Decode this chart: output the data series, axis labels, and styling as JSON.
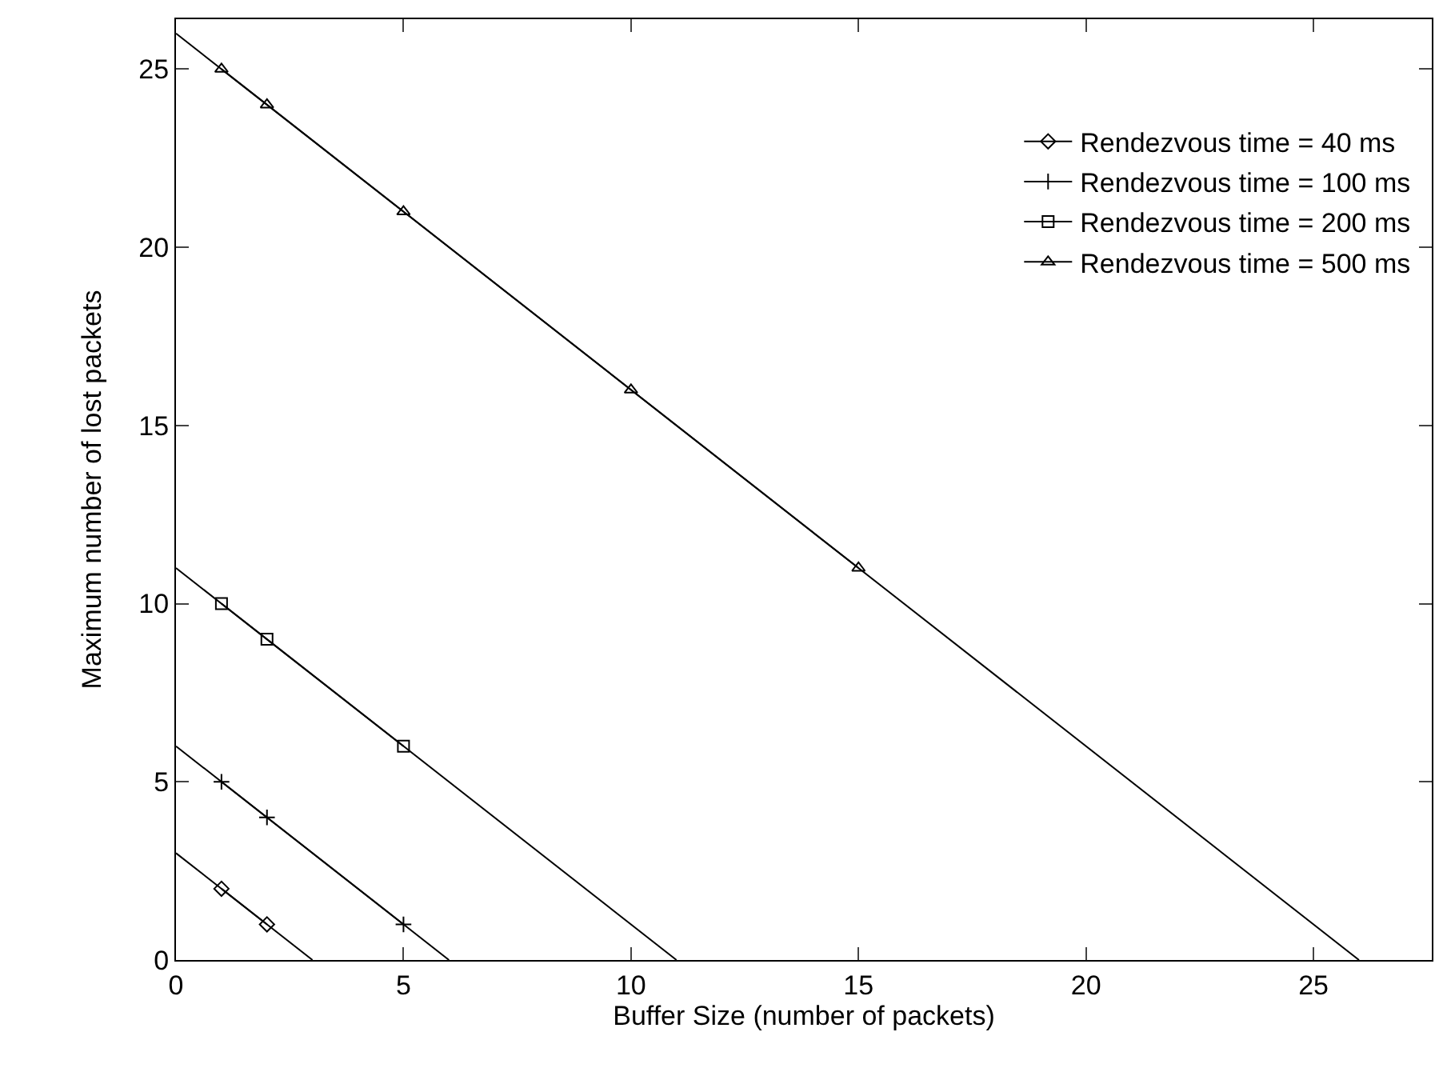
{
  "chart_data": {
    "type": "line",
    "xlabel": "Buffer Size (number of packets)",
    "ylabel": "Maximum number of lost packets",
    "xlim": [
      0,
      27.6
    ],
    "ylim": [
      0,
      26.4
    ],
    "xticks": [
      0,
      5,
      10,
      15,
      20,
      25
    ],
    "yticks": [
      0,
      5,
      10,
      15,
      20,
      25
    ],
    "legend": "top right",
    "line_style": "solid",
    "series": [
      {
        "name": "Rendezvous time = 40 ms",
        "color": "#000000",
        "marker": "diamond",
        "x": [
          1,
          2
        ],
        "values": [
          2,
          1
        ]
      },
      {
        "name": "Rendezvous time = 100 ms",
        "color": "#000000",
        "marker": "cross",
        "x": [
          1,
          2,
          5
        ],
        "values": [
          5,
          4,
          1
        ]
      },
      {
        "name": "Rendezvous time = 200 ms",
        "color": "#000000",
        "marker": "square",
        "x": [
          1,
          2,
          5
        ],
        "values": [
          10,
          9,
          6
        ]
      },
      {
        "name": "Rendezvous time = 500 ms",
        "color": "#000000",
        "marker": "triangle",
        "x": [
          1,
          2,
          5,
          10,
          15
        ],
        "values": [
          25,
          24,
          21,
          16,
          11
        ]
      },
      {
        "color": "#000000",
        "marker": "none",
        "x": [
          0,
          3
        ],
        "values": [
          3,
          0
        ]
      },
      {
        "color": "#000000",
        "marker": "none",
        "x": [
          0,
          6
        ],
        "values": [
          6,
          0
        ]
      },
      {
        "color": "#000000",
        "marker": "none",
        "x": [
          0,
          11
        ],
        "values": [
          11,
          0
        ]
      },
      {
        "color": "#000000",
        "marker": "none",
        "x": [
          0,
          26
        ],
        "values": [
          26,
          0
        ]
      }
    ]
  }
}
